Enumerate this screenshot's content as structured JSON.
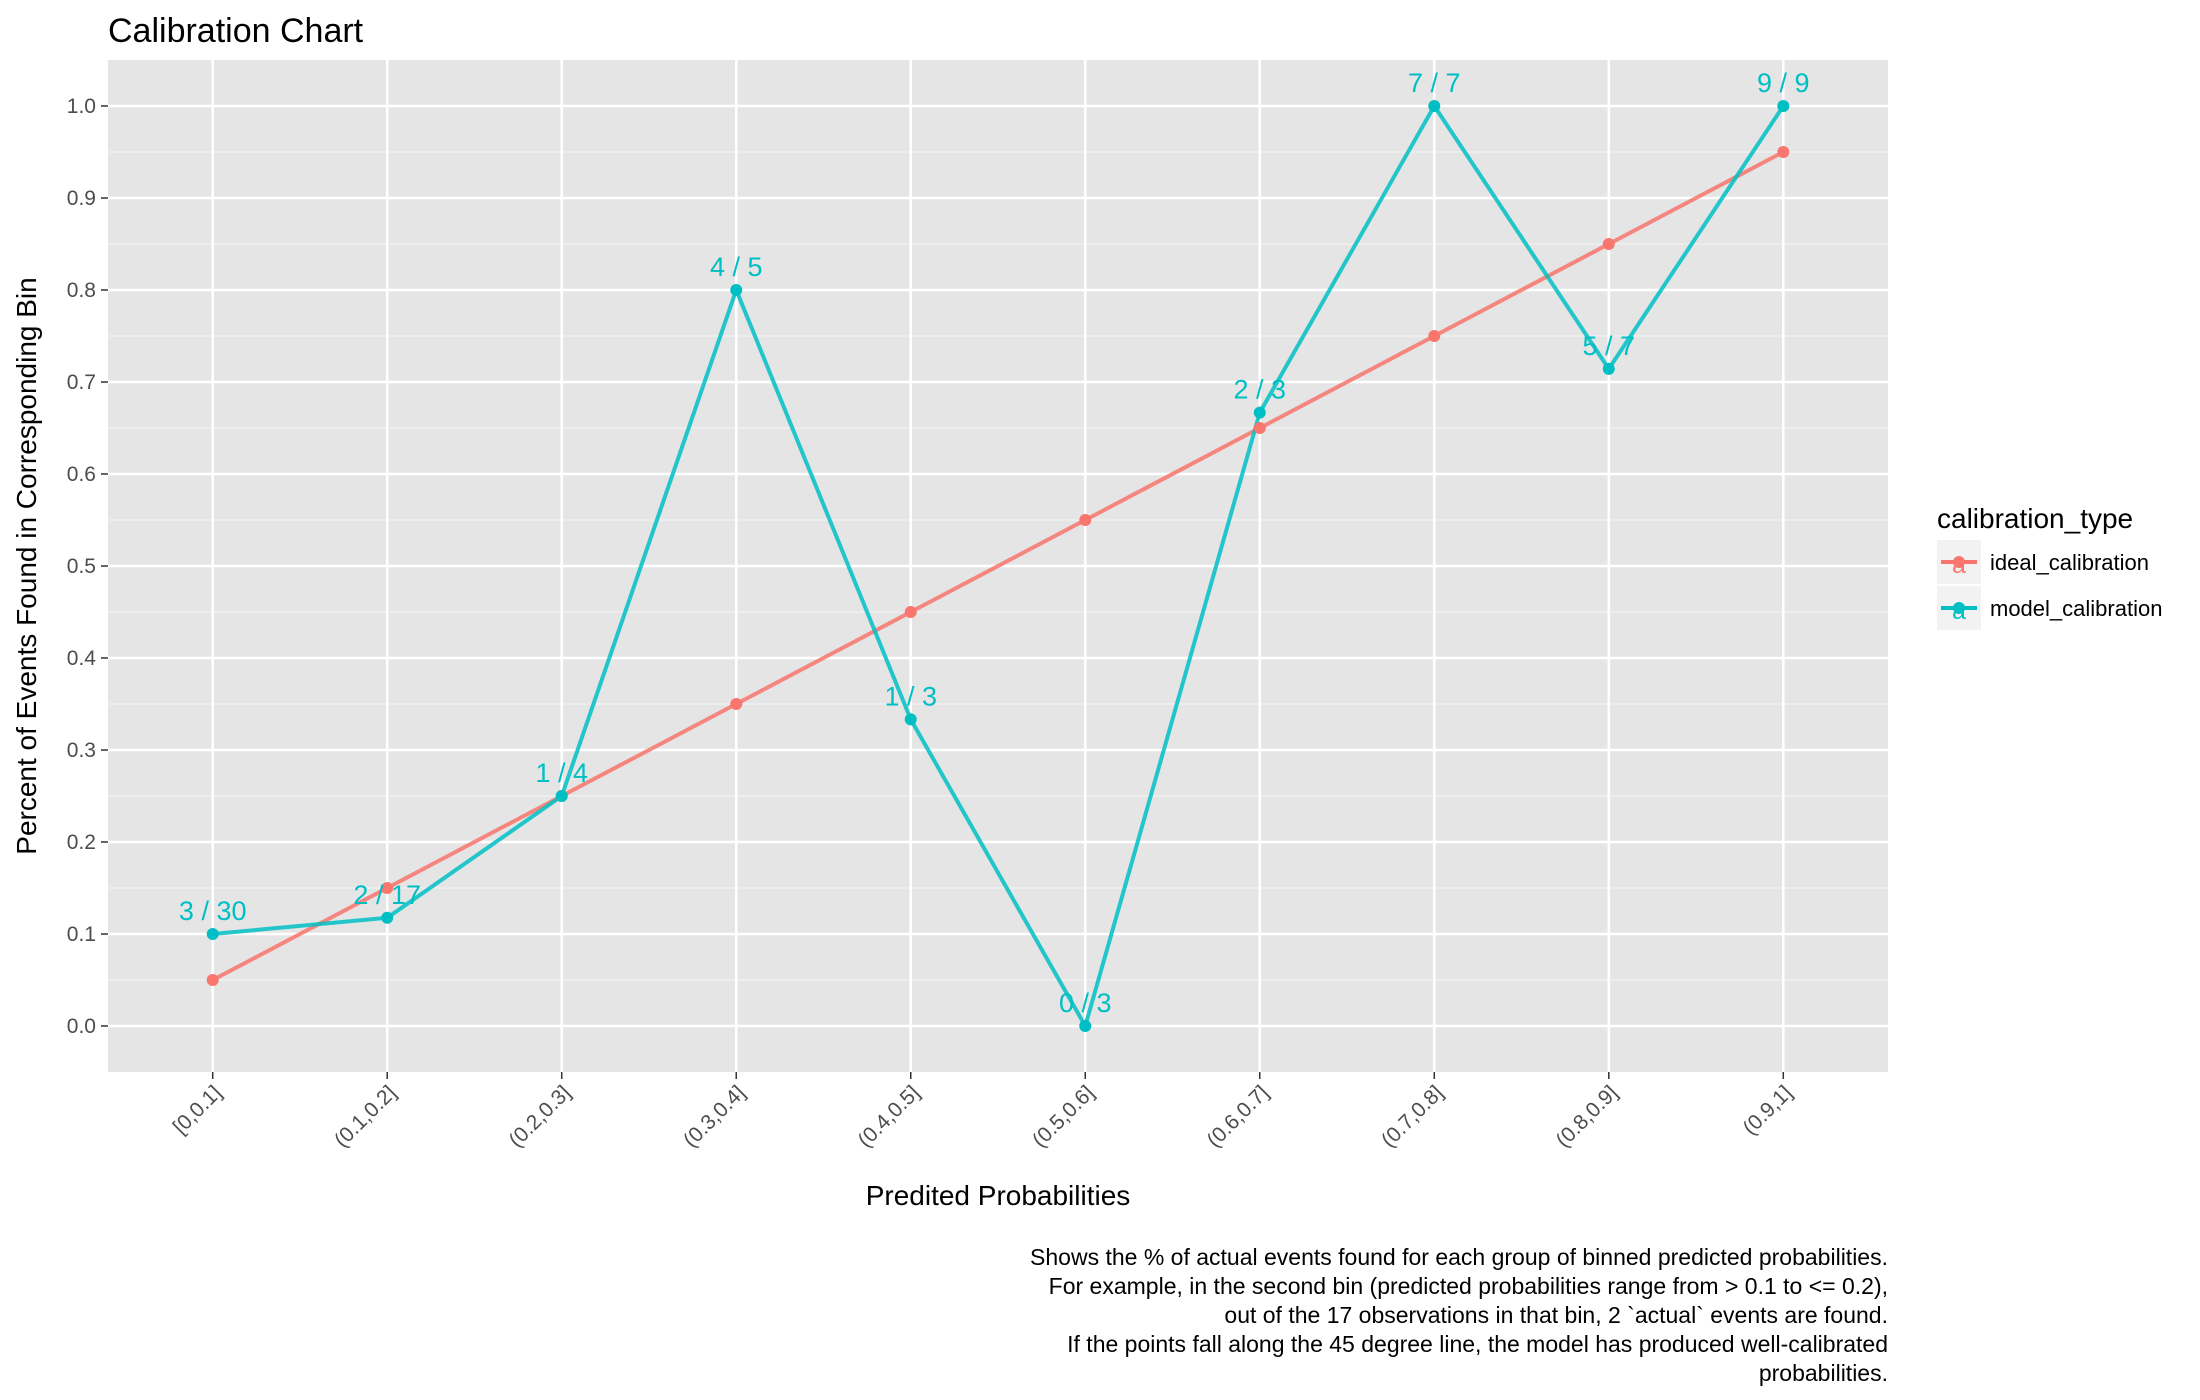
{
  "chart_data": {
    "type": "line",
    "title": "Calibration Chart",
    "xlabel": "Predited Probabilities",
    "ylabel": "Percent of Events Found in Corresponding Bin",
    "categories": [
      "[0,0.1]",
      "(0.1,0.2]",
      "(0.2,0.3]",
      "(0.3,0.4]",
      "(0.4,0.5]",
      "(0.5,0.6]",
      "(0.6,0.7]",
      "(0.7,0.8]",
      "(0.8,0.9]",
      "(0.9,1]"
    ],
    "ylim": [
      -0.05,
      1.05
    ],
    "yticks": [
      "0.0",
      "0.1",
      "0.2",
      "0.3",
      "0.4",
      "0.5",
      "0.6",
      "0.7",
      "0.8",
      "0.9",
      "1.0"
    ],
    "grid": true,
    "legend": {
      "title": "calibration_type",
      "position": "right",
      "key_glyph": "a"
    },
    "series": [
      {
        "name": "ideal_calibration",
        "color": "#F8766D",
        "values": [
          0.05,
          0.15,
          0.25,
          0.35,
          0.45,
          0.55,
          0.65,
          0.75,
          0.85,
          0.95
        ]
      },
      {
        "name": "model_calibration",
        "color": "#00BFC4",
        "values": [
          0.1,
          0.1176,
          0.25,
          0.8,
          0.3333,
          0.0,
          0.6667,
          1.0,
          0.7143,
          1.0
        ],
        "labels": [
          "3 / 30",
          "2 / 17",
          "1 / 4",
          "4 / 5",
          "1 / 3",
          "0 / 3",
          "2 / 3",
          "7 / 7",
          "5 / 7",
          "9 / 9"
        ]
      }
    ],
    "caption": [
      "Shows the % of actual events found for each group of binned predicted probabilities.",
      "For example, in the second bin (predicted probabilities range from > 0.1 to <= 0.2),",
      "out of the 17 observations in that bin, 2 `actual` events are found.",
      "If the points fall along the 45 degree line, the model has produced well-calibrated",
      "probabilities."
    ],
    "panel_background": "#E5E5E5"
  }
}
